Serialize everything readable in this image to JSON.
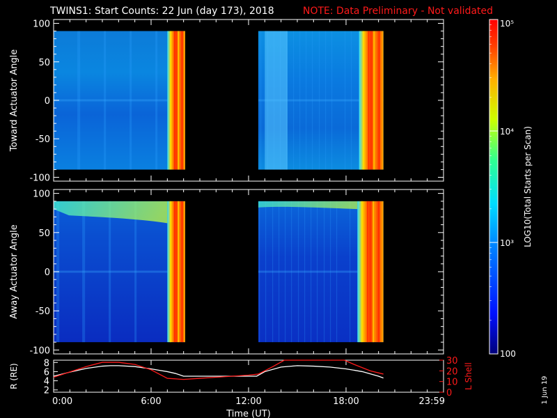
{
  "header": {
    "title": "TWINS1: Start Counts: 22 Jun (day 173), 2018",
    "note": "NOTE: Data Preliminary - Not validated"
  },
  "footer": {
    "xlabel": "Time (UT)",
    "date_stamp": "1 Jun 19"
  },
  "colors": {
    "background": "#000000",
    "axes": "#ffffff",
    "note": "#ff1a1a",
    "radius_line": "#ffffff",
    "lshell_line": "#ff1a1a"
  },
  "colorbar": {
    "label": "LOG10(Total Starts per Scan)",
    "scale": "log",
    "range": [
      100,
      100000
    ],
    "ticks": [
      {
        "value": 100,
        "label": "100"
      },
      {
        "value": 1000,
        "label": "10³"
      },
      {
        "value": 10000,
        "label": "10⁴"
      },
      {
        "value": 100000,
        "label": "10⁵"
      }
    ]
  },
  "chart_data": [
    {
      "type": "heatmap",
      "ylabel": "Toward Actuator Angle",
      "ylim": [
        -105,
        105
      ],
      "yticks": [
        -100,
        -50,
        0,
        50,
        100
      ],
      "xlim": [
        0,
        24
      ],
      "xtick_labels": [
        "0:00",
        "6:00",
        "12:00",
        "18:00",
        "23:59"
      ],
      "xticks": [
        0,
        6,
        12,
        18,
        24
      ],
      "data_blocks": [
        {
          "start_hour": 0.0,
          "end_hour": 8.1,
          "angle_range": [
            -90,
            90
          ],
          "background_counts": 400,
          "high_count_bands": [
            {
              "from": 7.0,
              "to": 8.1,
              "counts": 30000
            }
          ]
        },
        {
          "start_hour": 12.6,
          "end_hour": 20.3,
          "angle_range": [
            -90,
            90
          ],
          "background_counts": 450,
          "high_count_bands": [
            {
              "from": 13.0,
              "to": 14.4,
              "counts": 1500
            },
            {
              "from": 18.8,
              "to": 20.3,
              "counts": 20000
            }
          ]
        }
      ]
    },
    {
      "type": "heatmap",
      "ylabel": "Away Actuator Angle",
      "ylim": [
        -105,
        105
      ],
      "yticks": [
        -100,
        -50,
        0,
        50,
        100
      ],
      "xlim": [
        0,
        24
      ],
      "xtick_labels": [
        "0:00",
        "6:00",
        "12:00",
        "18:00",
        "23:59"
      ],
      "xticks": [
        0,
        6,
        12,
        18,
        24
      ],
      "data_blocks": [
        {
          "start_hour": 0.0,
          "end_hour": 8.1,
          "angle_range": [
            -90,
            90
          ],
          "background_counts": 250,
          "high_count_bands": [
            {
              "from": 7.0,
              "to": 8.1,
              "counts": 30000
            }
          ]
        },
        {
          "start_hour": 12.6,
          "end_hour": 20.3,
          "angle_range": [
            -90,
            90
          ],
          "background_counts": 250,
          "high_count_bands": [
            {
              "from": 18.7,
              "to": 20.3,
              "counts": 20000
            }
          ]
        }
      ]
    },
    {
      "type": "line",
      "xlim": [
        0,
        24
      ],
      "xticks": [
        0,
        6,
        12,
        18,
        24
      ],
      "xtick_labels": [
        "0:00",
        "6:00",
        "12:00",
        "18:00",
        "23:59"
      ],
      "ylabel": "R (RE)",
      "ylim": [
        1.5,
        8.5
      ],
      "yticks": [
        2,
        4,
        6,
        8
      ],
      "y2label": "L Shell",
      "y2lim": [
        0,
        30
      ],
      "y2ticks": [
        0,
        10,
        20,
        30
      ],
      "series": [
        {
          "axis": "left",
          "x": [
            0,
            1,
            2,
            3,
            3.5,
            4,
            5,
            6,
            6.5,
            7,
            7.5,
            8,
            9,
            10,
            11,
            12,
            12.5,
            13,
            14,
            15,
            16,
            17,
            18,
            19,
            20,
            20.3
          ],
          "y": [
            5.0,
            5.9,
            6.7,
            7.2,
            7.3,
            7.3,
            7.1,
            6.6,
            6.3,
            6.0,
            5.6,
            5.0,
            5.0,
            5.0,
            5.0,
            5.0,
            5.0,
            6.0,
            7.0,
            7.3,
            7.2,
            7.0,
            6.6,
            6.0,
            5.0,
            4.6
          ]
        },
        {
          "axis": "right",
          "x": [
            0,
            1,
            2,
            3,
            4,
            5,
            6,
            7,
            8,
            9,
            10,
            11,
            12,
            12.6,
            13.5,
            14.2,
            17.9,
            18.5,
            19.5,
            20.3
          ],
          "y": [
            14,
            19,
            24,
            28,
            28,
            26,
            21,
            13,
            12,
            13,
            14,
            15,
            16,
            17,
            24,
            30,
            30,
            26,
            20,
            17
          ]
        }
      ]
    }
  ]
}
